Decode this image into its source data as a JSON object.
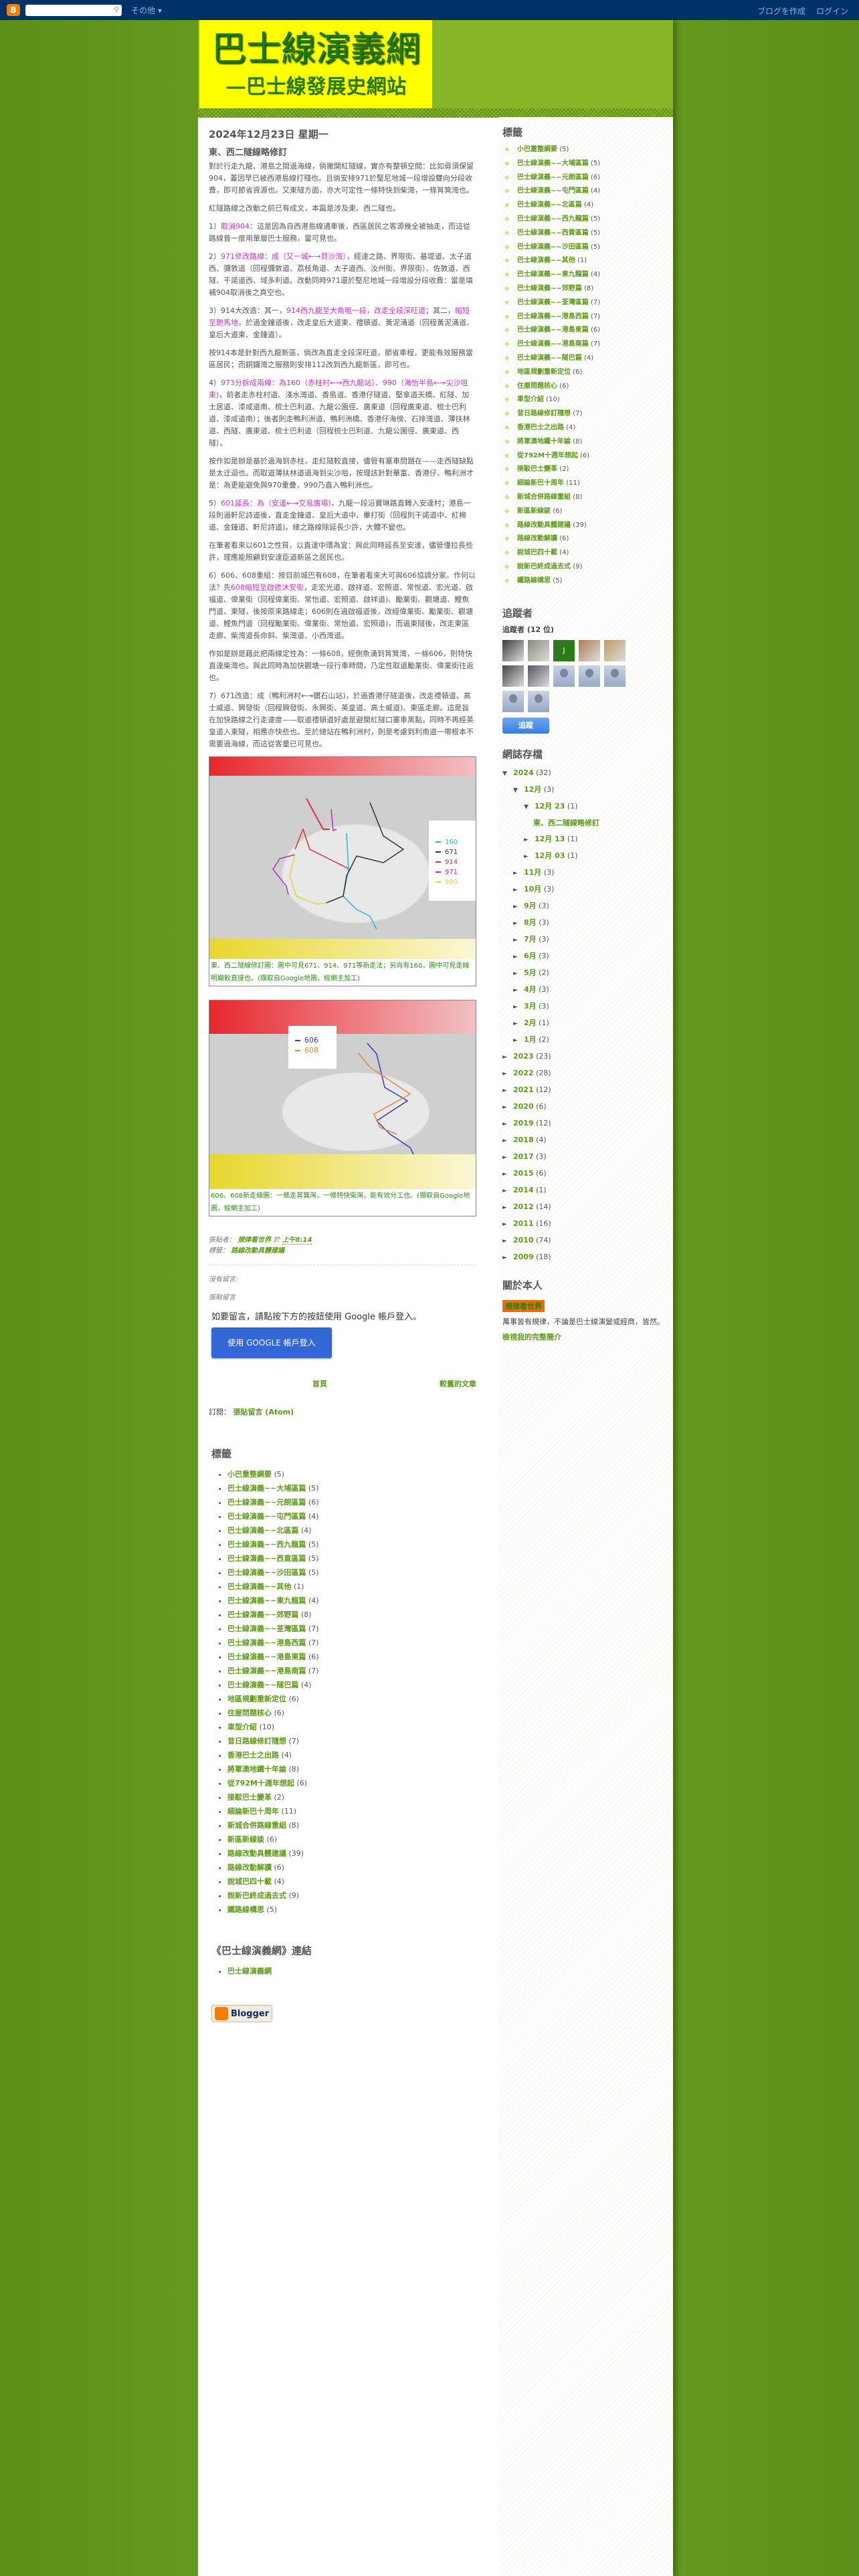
{
  "navbar": {
    "search_placeholder": "",
    "more": "その他 ▾",
    "create_blog": "ブログを作成",
    "login": "ログイン"
  },
  "header": {
    "title": "巴士線演義網",
    "subtitle": "—巴士線發展史網站"
  },
  "post": {
    "date": "2024年12月23日 星期一",
    "title": "東、西二隧線略修訂",
    "paragraphs": [
      [
        {
          "t": "對於行走九龍、港島之間過海線，倘撇開紅隧線，實亦有整頓空間：比如毋須保留904，蓋因早已被西港島線打殘也。且倘安排971於堅尼地城一段增設雙向分段收費，即可節省資源也。又東隧方面，亦大可定性一條特快到柴灣，一條筲箕灣也。"
        }
      ],
      [
        {
          "t": "紅隧路線之改動之前已有成文，本篇是涉及東、西二隧也。"
        }
      ],
      [
        {
          "t": "1）"
        },
        {
          "t": "取消904",
          "hl": true
        },
        {
          "t": "：這是因為自西港島線通車後，西區居民之客源幾全被抽走，而這從路線曾一度用單層巴士服務，當可見也。"
        }
      ],
      [
        {
          "t": "2）"
        },
        {
          "t": "971修改路線：成（又一城←→貝沙灣）",
          "hl": true
        },
        {
          "t": "，經達之路、界限街、基堤道、太子道西、彌敦道（回程彌敦道、荔枝角道、太子道西、汝州街、界限街）、佐敦道、西隧、干諾道西、域多利道。改動同時971還於堅尼地城一段增設分段收費：當是填補904取消後之真空也。"
        }
      ],
      [
        {
          "t": "3）914大改造：其一，"
        },
        {
          "t": "914西九龍至大角咀一段，改走全段深旺道",
          "hl": true
        },
        {
          "t": "；其二，"
        },
        {
          "t": "縮短至跑馬地",
          "hl": true
        },
        {
          "t": "，於過金鐘道後，改走皇后大道東、禮頓道、黃泥涌道（回程黃泥涌道、皇后大道東、金鐘道）。"
        }
      ],
      [
        {
          "t": "按914本是針對西九龍新區，倘改為直走全段深旺道，節省車程，更能有效服務當區居民；而銅鑼灣之服務則安排112改到西九龍新區，即可也。"
        }
      ],
      [
        {
          "t": "4）"
        },
        {
          "t": "973分拆成兩線：為160（赤柱村←→西九龍站）、990（海怡半島←→尖沙咀東)",
          "hl": true
        },
        {
          "t": "，前者走赤柱村道、淺水灣道、香島道、香港仔隧道、堅拿道天橋、紅隧、加士居道、漆咸道南、梳士巴利道、九龍公園徑、廣東道（回程廣東道、梳士巴利道、漆咸道南）；後者則走鴨利洲道、鴨利洲橋、香港仔海傍、石排灣道、薄扶林道、西隧、廣東道、梳士巴利道（回程梳士巴利道、九龍公園徑、廣東道、西隧）。"
        }
      ],
      [
        {
          "t": "按作如是辦是基於過海到赤柱，走紅隧較直接，儘管有塞車問題在——走西隧缺點是太迂迴也。而取道薄扶林道過海到尖沙咀，按理該針對華富、香港仔、鴨利洲才是：為更能避免與970重疊，990乃直入鴨利洲也。"
        }
      ],
      [
        {
          "t": "5）"
        },
        {
          "t": "601延長：為（安達←→交易廣場)",
          "hl": true
        },
        {
          "t": "，九龍一段沿寶琳路直轉入安達村；港島一段則過軒尼詩道後，直走金鐘道、皇后大道中、畢打街（回程則干諾道中、紅棉道、金鐘道、軒尼詩道)。總之路線除延長少許，大體不變也。"
        }
      ],
      [
        {
          "t": "在筆者看來以601之性質，以直達中環為宜：與此同時延長至安達，儘管僅拉長些許，理應能照顧到安達臣道新區之居民也。"
        }
      ],
      [
        {
          "t": "6）606、608重組：按目前城巴有608，在筆者看來大可與606協調分家。作何以法？先"
        },
        {
          "t": "608縮短至啟德沐安街",
          "hl": true
        },
        {
          "t": "，走宏光道、啟祥道、宏照道、常悅道、宏光道、啟福道、偉業街（回程偉業街、常怡道、宏照道、啟祥道)、勵業街、觀塘道、鯉魚門道、東隧，後按原來路線走；606則在過啟福道後，改經偉業街、勵業街、觀塘道、鯉魚門道（回程勵業街、偉業街、常怡道、宏照道)，而過東隧後，改走東區走廊、柴灣道長命斜、柴灣道、小西灣道。"
        }
      ],
      [
        {
          "t": "作如是辦是藉此把兩線定性為：一條608，經側魚涌到筲箕灣，一條606，則特快直達柴灣也。與此同時為加快觀塘一段行車時間，乃定性取道勵業街、偉業街往返也。"
        }
      ],
      [
        {
          "t": "7）671改造：成（鴨利洲村←→鑽石山站)，於過香港仔隧道後，改走禮頓道、高士威道、興發街（回程興發街、永興街、英皇道、高士威道)、東區走廊。這是旨在加快路線之行走速度——取道禮頓道好處是避開紅隧口塞車黑點，同時不再經英皇道入東隧，相應亦快些也。至於總站在鴨利洲村，則是考慮到利南道一帶根本不需要過海線，而這從客量已可見也。"
        }
      ]
    ],
    "figure1": {
      "legend": [
        {
          "route": "160",
          "color": "#2bb8d8"
        },
        {
          "route": "671",
          "color": "#333333"
        },
        {
          "route": "914",
          "color": "#e0303a"
        },
        {
          "route": "971",
          "color": "#b030c0"
        },
        {
          "route": "990",
          "color": "#e8d23a"
        }
      ],
      "caption": "東、西二隧線修訂圖：圖中可見671、914、971等新走法；另尚有160，圖中可見走線明顯較直接也。(擷取自Google地圖，經網主加工)"
    },
    "figure2": {
      "legend": [
        {
          "route": "606",
          "color": "#3a3aa8"
        },
        {
          "route": "608",
          "color": "#e08a3a"
        }
      ],
      "caption": "606、608新走線圖：一條走筲箕灣，一條特快柴灣，能有效分工也。(擷取自Google地圖，經網主加工)"
    },
    "posted_by_label": "張貼者：",
    "author": "規律看世界",
    "at": "於",
    "time": "上午8:14",
    "labels_label": "標籤：",
    "label": "路線改動具體建議",
    "no_comments": "沒有留言:",
    "post_comment": "張貼留言",
    "login_msg": "如要留言，請點按下方的按鈕使用 Google 帳戶登入。",
    "login_button": "使用 GOOGLE 帳戶登入",
    "home": "首頁",
    "older": "較舊的文章",
    "subscribe_label": "訂閱：",
    "subscribe_link": "張貼留言 (Atom)"
  },
  "labels_title": "標籤",
  "labels": [
    [
      "小巴重整綱要",
      "(5)"
    ],
    [
      "巴士線演義~~大埔區篇",
      "(5)"
    ],
    [
      "巴士線演義~~元朗區篇",
      "(6)"
    ],
    [
      "巴士線演義~~屯門區篇",
      "(4)"
    ],
    [
      "巴士線演義~~北區篇",
      "(4)"
    ],
    [
      "巴士線演義~~西九龍篇",
      "(5)"
    ],
    [
      "巴士線演義~~西貢區篇",
      "(5)"
    ],
    [
      "巴士線演義~~沙田區篇",
      "(5)"
    ],
    [
      "巴士線演義~~其他",
      "(1)"
    ],
    [
      "巴士線演義~~東九龍篇",
      "(4)"
    ],
    [
      "巴士線演義~~郊野篇",
      "(8)"
    ],
    [
      "巴士線演義~~荃灣區篇",
      "(7)"
    ],
    [
      "巴士線演義~~港島西篇",
      "(7)"
    ],
    [
      "巴士線演義~~港島東篇",
      "(6)"
    ],
    [
      "巴士線演義~~港島南篇",
      "(7)"
    ],
    [
      "巴士線演義~~隧巴篇",
      "(4)"
    ],
    [
      "地區規劃重新定位",
      "(6)"
    ],
    [
      "住屋問題核心",
      "(6)"
    ],
    [
      "車型介紹",
      "(10)"
    ],
    [
      "昔日路線修訂隨想",
      "(7)"
    ],
    [
      "香港巴士之出路",
      "(4)"
    ],
    [
      "將軍澳地鐵十年論",
      "(8)"
    ],
    [
      "從792M十週年想起",
      "(6)"
    ],
    [
      "接駁巴士變革",
      "(2)"
    ],
    [
      "細論新巴十周年",
      "(11)"
    ],
    [
      "新城合併路線重組",
      "(8)"
    ],
    [
      "新區新線談",
      "(6)"
    ],
    [
      "路線改動具體建議",
      "(39)"
    ],
    [
      "路線改動解讀",
      "(6)"
    ],
    [
      "說城巴四十載",
      "(4)"
    ],
    [
      "說新巴終成過去式",
      "(9)"
    ],
    [
      "鐵路線構思",
      "(5)"
    ]
  ],
  "links": {
    "title": "《巴士線演義網》連結",
    "items": [
      "巴士線演義網"
    ]
  },
  "blogger_badge": "Blogger",
  "followers": {
    "title": "追蹤者",
    "count_label": "追蹤者 (12 位)",
    "follow_button": "追蹤",
    "avatars": [
      "photo",
      "photo",
      "J",
      "photo",
      "photo",
      "photo",
      "photo",
      "default",
      "default",
      "default",
      "default",
      "default"
    ]
  },
  "archive": {
    "title": "網誌存檔",
    "years": [
      {
        "y": "2024",
        "c": "(32)",
        "open": true,
        "months": [
          {
            "m": "12月",
            "c": "(3)",
            "open": true,
            "days": [
              {
                "d": "12月 23",
                "c": "(1)",
                "open": true,
                "posts": [
                  "東、西二隧線略修訂"
                ]
              },
              {
                "d": "12月 13",
                "c": "(1)"
              },
              {
                "d": "12月 03",
                "c": "(1)"
              }
            ]
          },
          {
            "m": "11月",
            "c": "(3)"
          },
          {
            "m": "10月",
            "c": "(3)"
          },
          {
            "m": "9月",
            "c": "(3)"
          },
          {
            "m": "8月",
            "c": "(3)"
          },
          {
            "m": "7月",
            "c": "(3)"
          },
          {
            "m": "6月",
            "c": "(3)"
          },
          {
            "m": "5月",
            "c": "(2)"
          },
          {
            "m": "4月",
            "c": "(3)"
          },
          {
            "m": "3月",
            "c": "(3)"
          },
          {
            "m": "2月",
            "c": "(1)"
          },
          {
            "m": "1月",
            "c": "(2)"
          }
        ]
      },
      {
        "y": "2023",
        "c": "(23)"
      },
      {
        "y": "2022",
        "c": "(28)"
      },
      {
        "y": "2021",
        "c": "(12)"
      },
      {
        "y": "2020",
        "c": "(6)"
      },
      {
        "y": "2019",
        "c": "(12)"
      },
      {
        "y": "2018",
        "c": "(4)"
      },
      {
        "y": "2017",
        "c": "(3)"
      },
      {
        "y": "2015",
        "c": "(6)"
      },
      {
        "y": "2014",
        "c": "(1)"
      },
      {
        "y": "2012",
        "c": "(14)"
      },
      {
        "y": "2011",
        "c": "(16)"
      },
      {
        "y": "2010",
        "c": "(74)"
      },
      {
        "y": "2009",
        "c": "(18)"
      }
    ]
  },
  "about": {
    "title": "關於本人",
    "name": "規律看世界",
    "desc": "萬事皆有規律，不論是巴士線演變或經商，皆然。",
    "profile_link": "檢視我的完整簡介"
  },
  "colors": {
    "accent": "#5e9a1a",
    "highlight": "#cc33cc",
    "navbar": "#00326a",
    "banner": "#ffff00"
  }
}
